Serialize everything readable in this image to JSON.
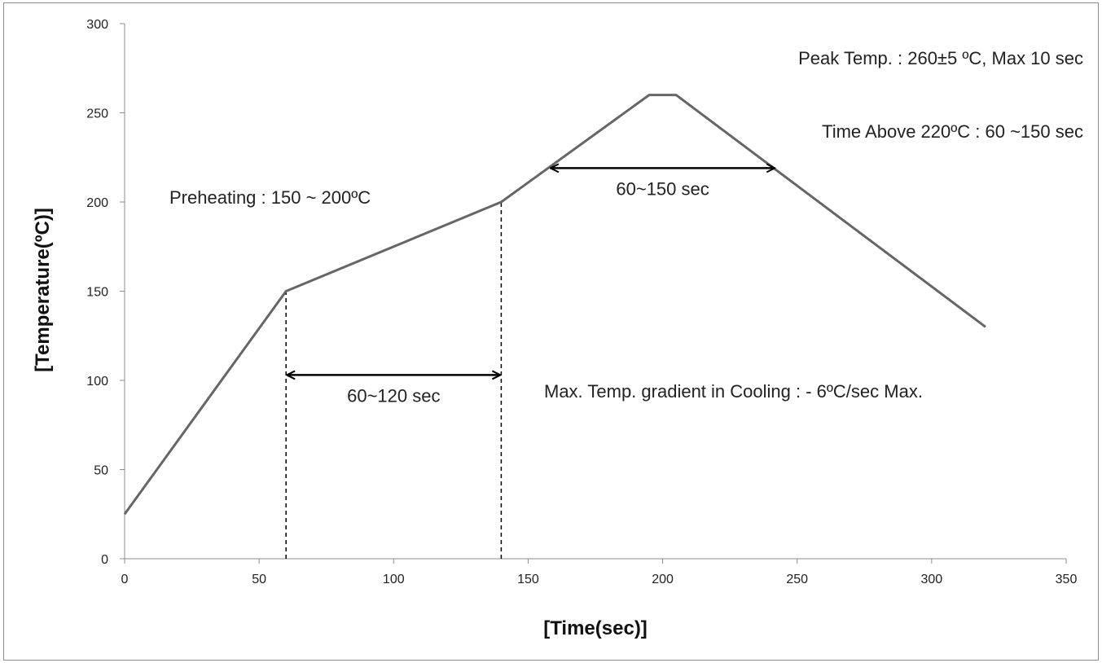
{
  "chart_data": {
    "type": "line",
    "title": "",
    "xlabel": "[Time(sec)]",
    "ylabel": "[Temperature(ºC)]",
    "xlim": [
      0,
      350
    ],
    "ylim": [
      0,
      300
    ],
    "xticks": [
      0,
      50,
      100,
      150,
      200,
      250,
      300,
      350
    ],
    "yticks": [
      0,
      50,
      100,
      150,
      200,
      250,
      300
    ],
    "grid": false,
    "line_color": "#666666",
    "series": [
      {
        "x": [
          0,
          60,
          140,
          195,
          205,
          320
        ],
        "y": [
          25,
          150,
          200,
          260,
          260,
          130
        ]
      }
    ],
    "reference_lines": [
      {
        "x": 60,
        "y_from": 0,
        "y_to": 150
      },
      {
        "x": 140,
        "y_from": 0,
        "y_to": 200
      }
    ],
    "spans": [
      {
        "x_from": 60,
        "x_to": 140,
        "y": 103,
        "label": "60~120 sec"
      },
      {
        "x_from": 158,
        "x_to": 242,
        "y": 219,
        "label": "60~150 sec"
      }
    ],
    "annotations": [
      {
        "text": "Peak Temp. : 260±5 ºC, Max 10 sec"
      },
      {
        "text": "Time Above 220ºC : 60 ~150 sec"
      },
      {
        "text": "Preheating : 150 ~ 200ºC"
      },
      {
        "text": "Max. Temp. gradient in Cooling : - 6ºC/sec Max."
      }
    ]
  }
}
